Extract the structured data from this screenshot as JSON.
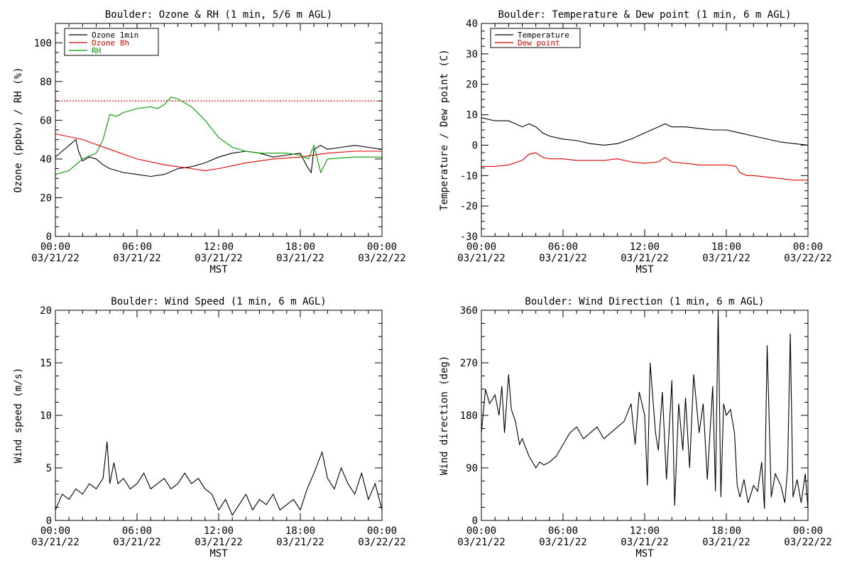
{
  "chart_data": [
    {
      "type": "line",
      "title": "Boulder: Ozone & RH (1 min, 5/6 m AGL)",
      "xlabel": "MST",
      "ylabel": "Ozone (ppbv) / RH (%)",
      "ylim": [
        0,
        110
      ],
      "yticks": [
        0,
        20,
        40,
        60,
        80,
        100
      ],
      "xlim": [
        0,
        24
      ],
      "x_unit": "hours since 00:00 03/21/22 MST",
      "xtick_labels": [
        [
          "00:00",
          "03/21/22"
        ],
        [
          "06:00",
          "03/21/22"
        ],
        [
          "12:00",
          "03/21/22"
        ],
        [
          "18:00",
          "03/21/22"
        ],
        [
          "00:00",
          "03/22/22"
        ]
      ],
      "legend_position": "top-left",
      "reference_line": {
        "y": 70,
        "color": "#dd0000",
        "style": "dotted"
      },
      "series": [
        {
          "name": "Ozone 1min",
          "color": "#000000",
          "x": [
            0,
            0.5,
            1,
            1.5,
            1.7,
            2,
            2.5,
            3,
            3.5,
            4,
            5,
            6,
            7,
            8,
            9,
            10,
            11,
            12,
            13,
            14,
            15,
            16,
            17,
            18,
            18.5,
            18.8,
            19,
            19.5,
            20,
            21,
            22,
            23,
            24
          ],
          "y": [
            41,
            44,
            47,
            50,
            44,
            39,
            41,
            40,
            37,
            35,
            33,
            32,
            31,
            32,
            35,
            36,
            38,
            41,
            43,
            44,
            43,
            41,
            42,
            43,
            36,
            33,
            45,
            47,
            45,
            46,
            47,
            46,
            45
          ]
        },
        {
          "name": "Ozone 8h",
          "color": "#dd0000",
          "x": [
            0,
            2,
            4,
            6,
            8,
            10,
            11,
            12,
            14,
            16,
            18,
            20,
            22,
            24
          ],
          "y": [
            53,
            50,
            45,
            40,
            37,
            35,
            34,
            35,
            38,
            40,
            41,
            43,
            44,
            44
          ]
        },
        {
          "name": "RH",
          "color": "#009a00",
          "x": [
            0,
            1,
            2,
            3,
            3.5,
            4,
            4.5,
            5,
            6,
            7,
            7.5,
            8,
            8.5,
            9,
            10,
            11,
            12,
            13,
            14,
            15,
            16,
            17,
            18,
            18.6,
            19,
            19.5,
            20,
            22,
            24
          ],
          "y": [
            32,
            34,
            40,
            43,
            50,
            63,
            62,
            64,
            66,
            67,
            66,
            68,
            72,
            71,
            67,
            60,
            51,
            46,
            44,
            43,
            43,
            43,
            42,
            40,
            47,
            33,
            40,
            41,
            41
          ]
        }
      ]
    },
    {
      "type": "line",
      "title": "Boulder: Temperature & Dew point (1 min, 6 m AGL)",
      "xlabel": "MST",
      "ylabel": "Temperature / Dew point (C)",
      "ylim": [
        -30,
        40
      ],
      "yticks": [
        -30,
        -20,
        -10,
        0,
        10,
        20,
        30,
        40
      ],
      "xlim": [
        0,
        24
      ],
      "x_unit": "hours since 00:00 03/21/22 MST",
      "xtick_labels": [
        [
          "00:00",
          "03/21/22"
        ],
        [
          "06:00",
          "03/21/22"
        ],
        [
          "12:00",
          "03/21/22"
        ],
        [
          "18:00",
          "03/21/22"
        ],
        [
          "00:00",
          "03/22/22"
        ]
      ],
      "legend_position": "top-left",
      "series": [
        {
          "name": "Temperature",
          "color": "#000000",
          "x": [
            0,
            1,
            2,
            2.5,
            3,
            3.5,
            4,
            4.5,
            5,
            6,
            7,
            8,
            9,
            10,
            11,
            12,
            13,
            13.5,
            14,
            15,
            16,
            17,
            18,
            19,
            20,
            21,
            22,
            23,
            24
          ],
          "y": [
            9,
            8,
            8,
            7,
            6,
            7,
            6,
            4,
            3,
            2,
            1.5,
            0.5,
            0,
            0.5,
            2,
            4,
            6,
            7,
            6,
            6,
            5.5,
            5,
            5,
            4,
            3,
            2,
            1,
            0.5,
            0
          ]
        },
        {
          "name": "Dew point",
          "color": "#dd0000",
          "x": [
            0,
            1,
            2,
            3,
            3.5,
            4,
            4.5,
            5,
            6,
            7,
            8,
            9,
            10,
            11,
            12,
            13,
            13.5,
            14,
            15,
            16,
            17,
            18,
            18.7,
            19,
            19.5,
            20,
            21,
            22,
            23,
            24
          ],
          "y": [
            -7,
            -7,
            -6.5,
            -5,
            -3,
            -2.5,
            -4,
            -4.5,
            -4.5,
            -5,
            -5,
            -5,
            -4.5,
            -5.5,
            -6,
            -5.5,
            -4,
            -5.5,
            -6,
            -6.5,
            -6.5,
            -6.5,
            -7,
            -9,
            -10,
            -10,
            -10.5,
            -11,
            -11.5,
            -11.5
          ]
        }
      ]
    },
    {
      "type": "line",
      "title": "Boulder: Wind Speed (1 min, 6 m AGL)",
      "xlabel": "MST",
      "ylabel": "Wind speed (m/s)",
      "ylim": [
        0,
        20
      ],
      "yticks": [
        0,
        5,
        10,
        15,
        20
      ],
      "xlim": [
        0,
        24
      ],
      "x_unit": "hours since 00:00 03/21/22 MST",
      "xtick_labels": [
        [
          "00:00",
          "03/21/22"
        ],
        [
          "06:00",
          "03/21/22"
        ],
        [
          "12:00",
          "03/21/22"
        ],
        [
          "18:00",
          "03/21/22"
        ],
        [
          "00:00",
          "03/22/22"
        ]
      ],
      "series": [
        {
          "color": "#000000",
          "x": [
            0,
            0.5,
            1,
            1.5,
            2,
            2.5,
            3,
            3.5,
            3.8,
            4,
            4.3,
            4.6,
            5,
            5.5,
            6,
            6.5,
            7,
            7.5,
            8,
            8.5,
            9,
            9.5,
            10,
            10.5,
            11,
            11.5,
            12,
            12.5,
            13,
            13.5,
            14,
            14.5,
            15,
            15.5,
            16,
            16.5,
            17,
            17.5,
            18,
            18.5,
            19,
            19.3,
            19.6,
            20,
            20.5,
            21,
            21.5,
            22,
            22.5,
            23,
            23.5,
            24
          ],
          "y": [
            1.0,
            2.5,
            2.0,
            3.0,
            2.5,
            3.5,
            3.0,
            4.0,
            7.5,
            3.5,
            5.5,
            3.5,
            4.0,
            3.0,
            3.5,
            4.5,
            3.0,
            3.5,
            4.0,
            3.0,
            3.5,
            4.5,
            3.5,
            4.0,
            3.0,
            2.5,
            1.0,
            2.0,
            0.5,
            1.5,
            2.5,
            1.0,
            2.0,
            1.5,
            2.5,
            1.0,
            1.5,
            2.0,
            1.0,
            3.0,
            4.5,
            5.5,
            6.5,
            4.0,
            3.0,
            5.0,
            3.5,
            2.5,
            4.5,
            2.0,
            3.5,
            1.0
          ]
        }
      ]
    },
    {
      "type": "line",
      "title": "Boulder: Wind Direction (1 min, 6 m AGL)",
      "xlabel": "MST",
      "ylabel": "Wind direction (deg)",
      "ylim": [
        0,
        360
      ],
      "yticks": [
        0,
        90,
        180,
        270,
        360
      ],
      "xlim": [
        0,
        24
      ],
      "x_unit": "hours since 00:00 03/21/22 MST",
      "xtick_labels": [
        [
          "00:00",
          "03/21/22"
        ],
        [
          "06:00",
          "03/21/22"
        ],
        [
          "12:00",
          "03/21/22"
        ],
        [
          "18:00",
          "03/21/22"
        ],
        [
          "00:00",
          "03/22/22"
        ]
      ],
      "series": [
        {
          "color": "#000000",
          "x": [
            0,
            0.3,
            0.6,
            1,
            1.3,
            1.5,
            1.7,
            2,
            2.2,
            2.5,
            2.8,
            3,
            3.5,
            4,
            4.3,
            4.6,
            5,
            5.5,
            6,
            6.5,
            7,
            7.5,
            8,
            8.5,
            9,
            9.5,
            10,
            10.5,
            11,
            11.3,
            11.6,
            12,
            12.2,
            12.4,
            12.6,
            12.8,
            13,
            13.3,
            13.6,
            14,
            14.2,
            14.5,
            14.8,
            15,
            15.3,
            15.6,
            16,
            16.3,
            16.6,
            17,
            17.2,
            17.4,
            17.6,
            17.8,
            18,
            18.3,
            18.6,
            18.8,
            19,
            19.3,
            19.6,
            20,
            20.3,
            20.6,
            20.8,
            21,
            21.3,
            21.6,
            22,
            22.3,
            22.5,
            22.7,
            22.9,
            23.2,
            23.5,
            23.8,
            24
          ],
          "y": [
            150,
            225,
            200,
            215,
            180,
            230,
            150,
            250,
            190,
            170,
            130,
            140,
            110,
            90,
            100,
            95,
            100,
            110,
            130,
            150,
            160,
            140,
            150,
            160,
            140,
            150,
            160,
            170,
            200,
            130,
            220,
            180,
            60,
            270,
            210,
            150,
            120,
            220,
            70,
            240,
            25,
            200,
            120,
            210,
            90,
            250,
            150,
            200,
            70,
            230,
            50,
            360,
            40,
            200,
            180,
            190,
            150,
            60,
            40,
            70,
            30,
            60,
            50,
            100,
            20,
            300,
            40,
            80,
            60,
            30,
            90,
            320,
            40,
            70,
            30,
            80,
            20
          ]
        }
      ]
    }
  ]
}
